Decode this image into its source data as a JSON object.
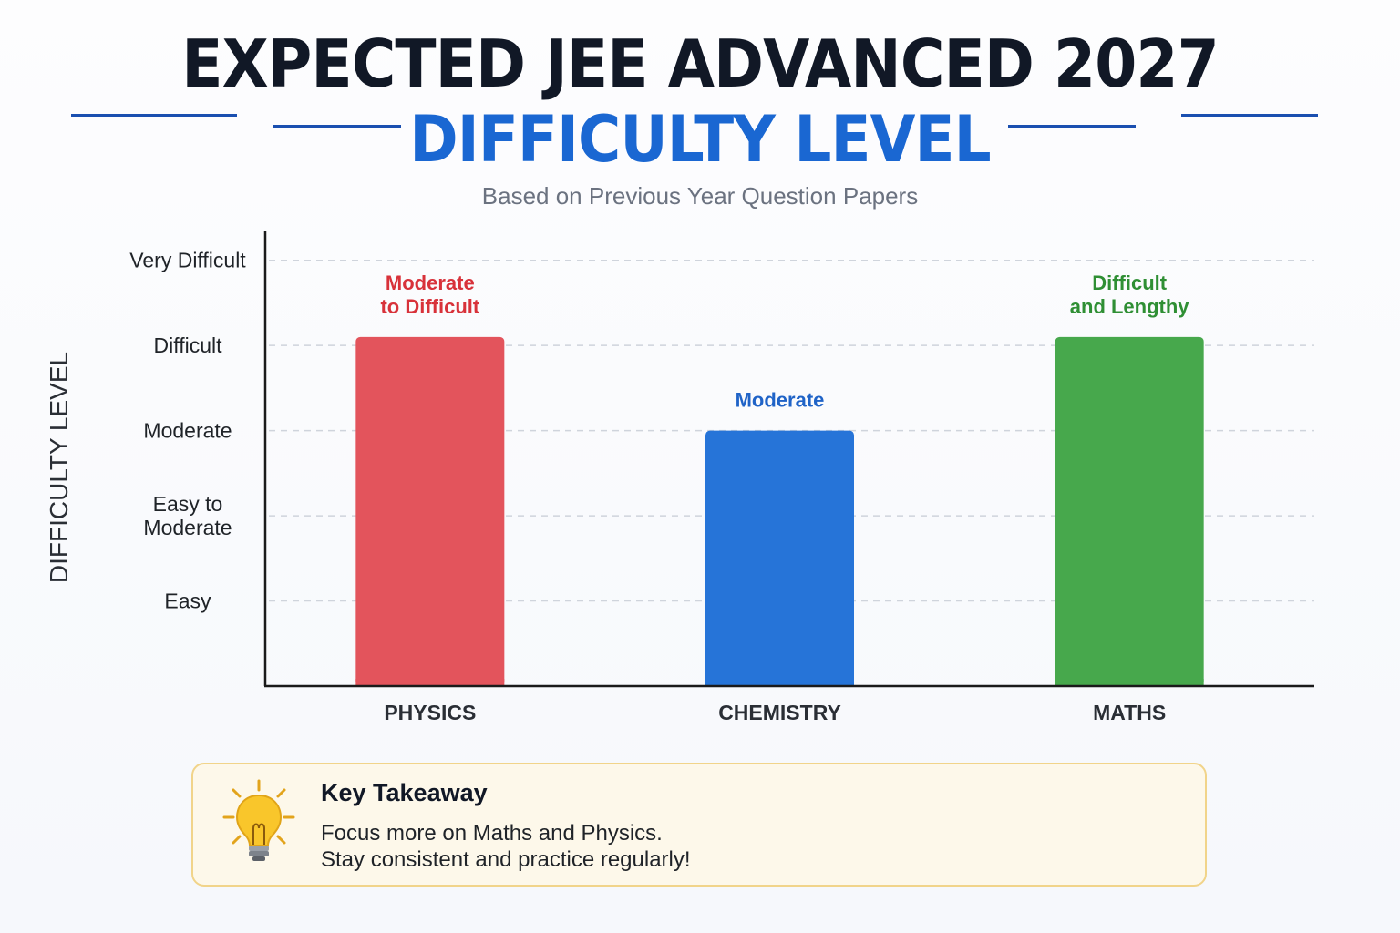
{
  "header": {
    "title_line1": "EXPECTED JEE ADVANCED 2027",
    "title_line2": "DIFFICULTY LEVEL",
    "subtitle": "Based on Previous Year Question Papers"
  },
  "chart_data": {
    "type": "bar",
    "ylabel": "DIFFICULTY LEVEL",
    "xlabel": "",
    "y_ticks": [
      {
        "value": 1,
        "label": [
          "Easy"
        ]
      },
      {
        "value": 2,
        "label": [
          "Easy to",
          "Moderate"
        ]
      },
      {
        "value": 3,
        "label": [
          "Moderate"
        ]
      },
      {
        "value": 4,
        "label": [
          "Difficult"
        ]
      },
      {
        "value": 5,
        "label": [
          "Very Difficult"
        ]
      }
    ],
    "ylim": [
      0,
      5.35
    ],
    "grid": true,
    "categories": [
      "PHYSICS",
      "CHEMISTRY",
      "MATHS"
    ],
    "values": [
      4.1,
      3.0,
      4.1
    ],
    "colors": [
      "#e3545c",
      "#2674d8",
      "#47a84c"
    ],
    "data_labels": [
      {
        "lines": [
          "Moderate",
          "to Difficult"
        ],
        "color": "#d8323a"
      },
      {
        "lines": [
          "Moderate"
        ],
        "color": "#1f63c7"
      },
      {
        "lines": [
          "Difficult",
          "and Lengthy"
        ],
        "color": "#2f8f34"
      }
    ]
  },
  "takeaway": {
    "icon": "lightbulb-icon",
    "title": "Key Takeaway",
    "line1": "Focus more on Maths and Physics.",
    "line2": "Stay consistent and practice regularly!"
  },
  "colors": {
    "title": "#111826",
    "accent": "#1a67d2",
    "panel_bg": "#fdf8ea",
    "panel_border": "#f1d48a"
  }
}
